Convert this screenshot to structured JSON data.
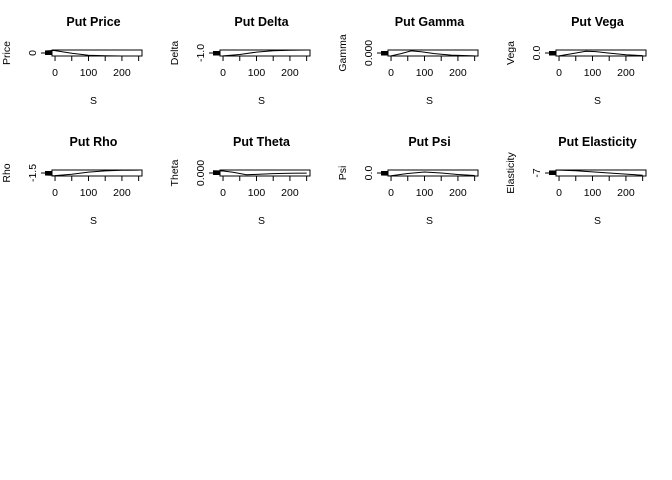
{
  "chart_data": [
    {
      "type": "line",
      "title": "Put Price",
      "xlabel": "S",
      "ylabel": "Price",
      "x_ticks": [
        "0",
        "100",
        "200"
      ],
      "y_ticks": [
        "0"
      ],
      "xlim": [
        -30,
        260
      ],
      "ylim": [
        0,
        100
      ],
      "series": [
        {
          "x": [
            -30,
            0,
            50,
            100,
            150,
            200,
            250
          ],
          "values": [
            100,
            90,
            45,
            12,
            4,
            1,
            0
          ]
        }
      ]
    },
    {
      "type": "line",
      "title": "Put Delta",
      "xlabel": "S",
      "ylabel": "Delta",
      "x_ticks": [
        "0",
        "100",
        "200"
      ],
      "y_ticks": [
        "-1.0"
      ],
      "xlim": [
        -30,
        260
      ],
      "ylim": [
        -1,
        0
      ],
      "series": [
        {
          "x": [
            -30,
            0,
            50,
            100,
            150,
            200,
            250
          ],
          "values": [
            -1,
            -0.98,
            -0.75,
            -0.35,
            -0.12,
            -0.04,
            -0.01
          ]
        }
      ]
    },
    {
      "type": "line",
      "title": "Put Gamma",
      "xlabel": "S",
      "ylabel": "Gamma",
      "x_ticks": [
        "0",
        "100",
        "200"
      ],
      "y_ticks": [
        "0.000"
      ],
      "xlim": [
        -30,
        260
      ],
      "ylim": [
        0,
        0.01
      ],
      "series": [
        {
          "x": [
            -30,
            0,
            30,
            60,
            90,
            130,
            180,
            250
          ],
          "values": [
            0,
            0.0003,
            0.004,
            0.0085,
            0.007,
            0.004,
            0.0015,
            0.0003
          ]
        }
      ]
    },
    {
      "type": "line",
      "title": "Put Vega",
      "xlabel": "S",
      "ylabel": "Vega",
      "x_ticks": [
        "0",
        "100",
        "200"
      ],
      "y_ticks": [
        "0.0"
      ],
      "xlim": [
        -30,
        260
      ],
      "ylim": [
        0,
        50
      ],
      "series": [
        {
          "x": [
            -30,
            0,
            40,
            80,
            110,
            150,
            200,
            250
          ],
          "values": [
            0,
            1,
            20,
            40,
            36,
            24,
            10,
            3
          ]
        }
      ]
    },
    {
      "type": "line",
      "title": "Put Rho",
      "xlabel": "S",
      "ylabel": "Rho",
      "x_ticks": [
        "0",
        "100",
        "200"
      ],
      "y_ticks": [
        "-1.5"
      ],
      "xlim": [
        -30,
        260
      ],
      "ylim": [
        -1.7,
        0
      ],
      "series": [
        {
          "x": [
            -30,
            0,
            50,
            100,
            150,
            200,
            250
          ],
          "values": [
            -1.7,
            -1.6,
            -1.2,
            -0.6,
            -0.25,
            -0.08,
            -0.02
          ]
        }
      ]
    },
    {
      "type": "line",
      "title": "Put Theta",
      "xlabel": "S",
      "ylabel": "Theta",
      "x_ticks": [
        "0",
        "100",
        "200"
      ],
      "y_ticks": [
        "0.000"
      ],
      "xlim": [
        -30,
        260
      ],
      "ylim": [
        -0.02,
        0.02
      ],
      "series": [
        {
          "x": [
            -30,
            0,
            30,
            70,
            100,
            150,
            200,
            250
          ],
          "values": [
            0.015,
            0.013,
            0.005,
            -0.012,
            -0.009,
            -0.004,
            -0.0015,
            -0.0005
          ]
        }
      ]
    },
    {
      "type": "line",
      "title": "Put Psi",
      "xlabel": "S",
      "ylabel": "Psi",
      "x_ticks": [
        "0",
        "100",
        "200"
      ],
      "y_ticks": [
        "0.0"
      ],
      "xlim": [
        -30,
        260
      ],
      "ylim": [
        0,
        60
      ],
      "series": [
        {
          "x": [
            -30,
            0,
            50,
            100,
            150,
            200,
            250
          ],
          "values": [
            0,
            3,
            25,
            40,
            30,
            15,
            5
          ]
        }
      ]
    },
    {
      "type": "line",
      "title": "Put Elasticity",
      "xlabel": "S",
      "ylabel": "Elasticity",
      "x_ticks": [
        "0",
        "100",
        "200"
      ],
      "y_ticks": [
        "-7"
      ],
      "xlim": [
        -30,
        260
      ],
      "ylim": [
        -8,
        0
      ],
      "series": [
        {
          "x": [
            -30,
            0,
            50,
            100,
            150,
            200,
            250
          ],
          "values": [
            0,
            -0.2,
            -1,
            -2.5,
            -4,
            -5.5,
            -7
          ]
        }
      ]
    }
  ]
}
